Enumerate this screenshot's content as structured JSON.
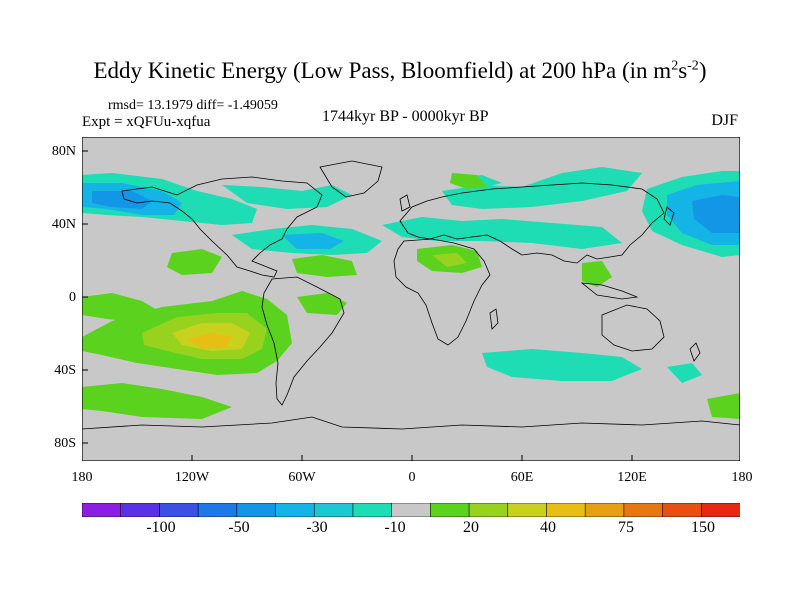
{
  "title": {
    "main": "Eddy Kinetic Energy (Low Pass, Bloomfield) at 200 hPa (in m",
    "sup1": "2",
    "mid": "s",
    "sup2": "-2",
    "end": ")"
  },
  "stats": "rmsd= 13.1979 diff= -1.49059",
  "expt": "Expt = xQFUu-xqfua",
  "period": "1744kyr BP - 0000kyr BP",
  "season": "DJF",
  "y_axis": [
    "80N",
    "40N",
    "0",
    "40S",
    "80S"
  ],
  "x_axis": [
    "180",
    "120W",
    "60W",
    "0",
    "60E",
    "120E",
    "180"
  ],
  "colorbar": {
    "labels": [
      "-100",
      "-50",
      "-30",
      "-10",
      "20",
      "40",
      "75",
      "150"
    ],
    "colors": [
      "#8b1ee0",
      "#5a32e6",
      "#3c50e6",
      "#1e78e6",
      "#1496e6",
      "#14b4e6",
      "#1ec8d2",
      "#1edcb4",
      "#c8c8c8",
      "#5ad21e",
      "#96d21e",
      "#c8d21e",
      "#e6be14",
      "#e6a014",
      "#e67814",
      "#e65014",
      "#e62814"
    ]
  },
  "colors": {
    "land_background": "#c8c8c8",
    "coast": "#000000"
  }
}
